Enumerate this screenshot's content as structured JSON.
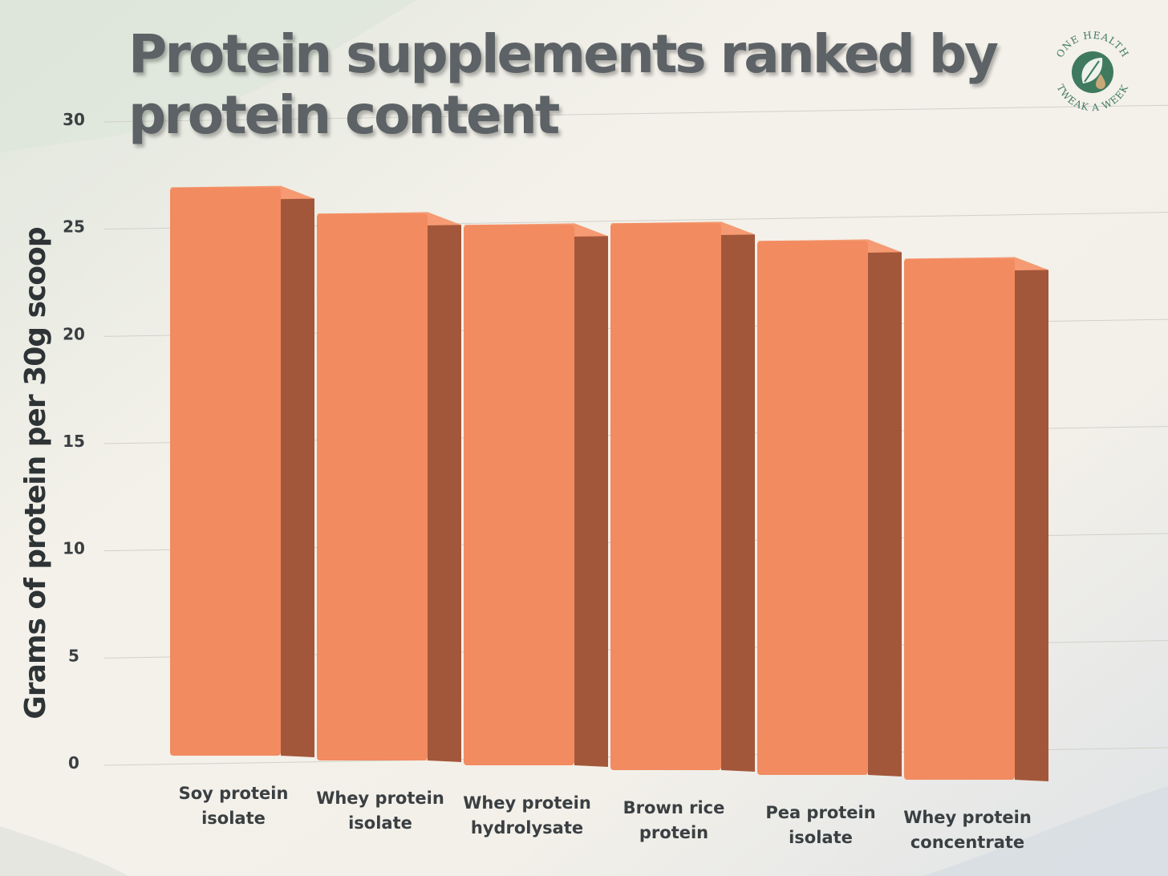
{
  "title": "Protein supplements ranked by protein content",
  "logo": {
    "name": "One Health Tweak A Week",
    "text_top": "ONE HEALTH",
    "text_bottom": "TWEAK A WEEK",
    "icon": "leaf-drop-icon",
    "color": "#3f7a5e"
  },
  "colors": {
    "bar_front": "#f28b60",
    "bar_side": "#a3573a",
    "bar_top": "#f59a72",
    "title": "#5d6266",
    "axis_text": "#3a3f42"
  },
  "chart_data": {
    "type": "bar",
    "title": "Protein supplements ranked by protein content",
    "ylabel": "Grams of protein per 30g scoop",
    "xlabel": "",
    "ylim": [
      0,
      30
    ],
    "yticks": [
      "0",
      "5",
      "10",
      "15",
      "20",
      "25",
      "30"
    ],
    "categories": [
      "Soy protein isolate",
      "Whey protein isolate",
      "Whey protein hydrolysate",
      "Brown rice protein",
      "Pea protein isolate",
      "Whey protein concentrate"
    ],
    "category_lines": [
      [
        "Soy protein",
        "isolate"
      ],
      [
        "Whey protein",
        "isolate"
      ],
      [
        "Whey protein",
        "hydrolysate"
      ],
      [
        "Brown rice",
        "protein"
      ],
      [
        "Pea protein",
        "isolate"
      ],
      [
        "Whey protein",
        "concentrate"
      ]
    ],
    "values": [
      26.5,
      25.5,
      25.2,
      25.5,
      24.9,
      24.3
    ],
    "grid": true,
    "style": "3d-bar"
  }
}
